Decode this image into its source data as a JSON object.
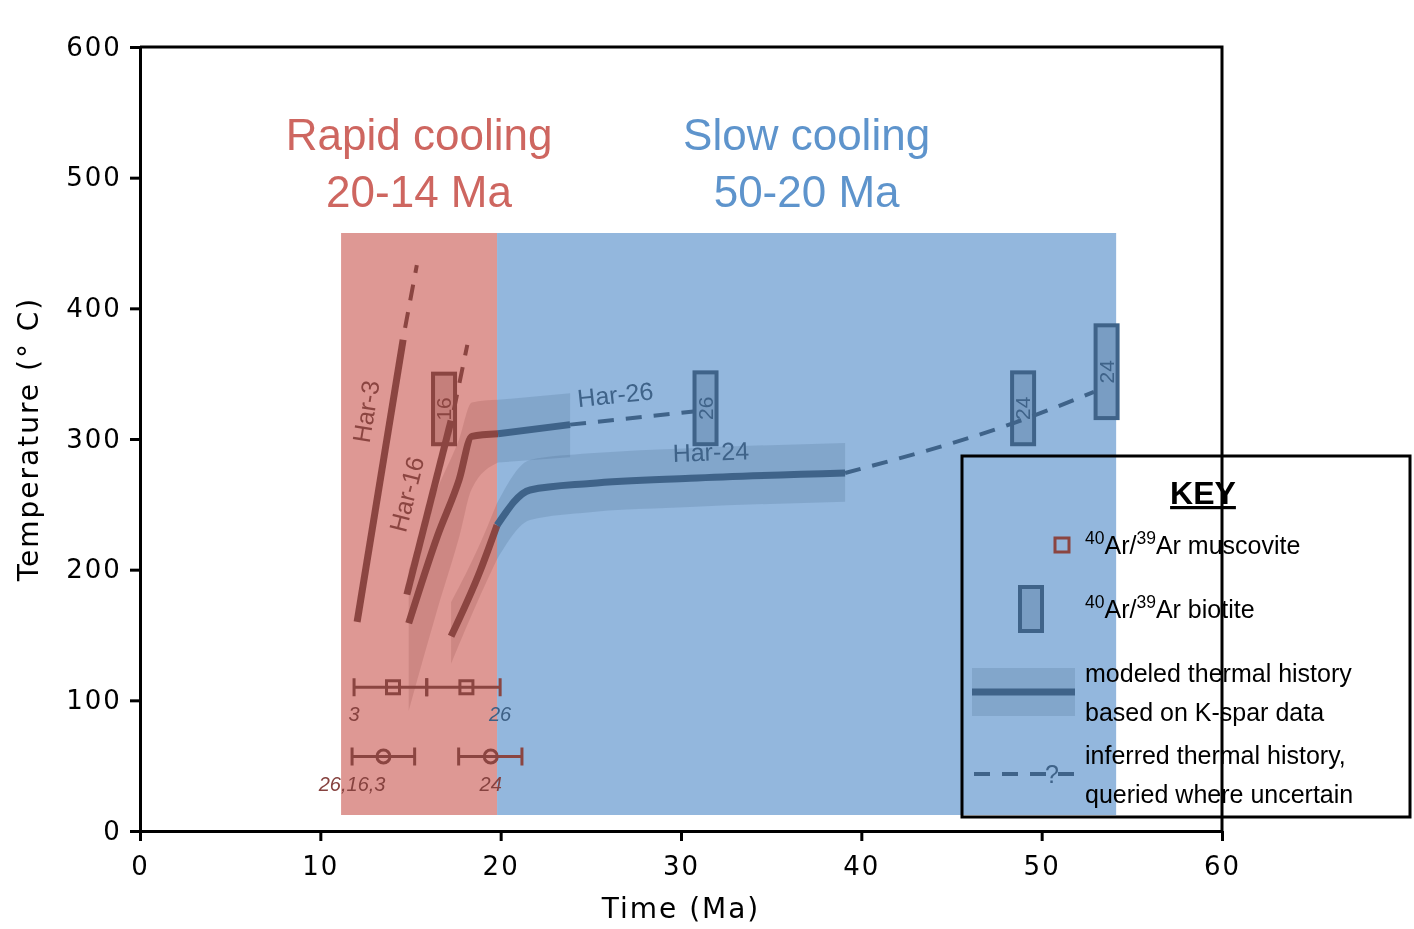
{
  "chart_data": {
    "type": "line",
    "xlabel": "Time (Ma)",
    "ylabel": "Temperature (° C)",
    "xlim": [
      0,
      60
    ],
    "ylim": [
      0,
      600
    ],
    "xticks": [
      0,
      10,
      20,
      30,
      40,
      50,
      60
    ],
    "yticks": [
      0,
      100,
      200,
      300,
      400,
      500,
      600
    ],
    "legend": "bottom right",
    "legend_title": "KEY",
    "bands": [
      {
        "axis": "x",
        "from": 11.15,
        "to": 19.8,
        "label": "Rapid cooling\n20-14 Ma",
        "color": "#ce6660"
      },
      {
        "axis": "x",
        "from": 19.8,
        "to": 54.13,
        "label": "Slow cooling\n50-20 Ma",
        "color": "#5e94cc"
      }
    ],
    "series": [
      {
        "type": "scatter",
        "name": "$^{40}$Ar/$^{39}$Ar muscovite",
        "color": "#8b4541",
        "marker": "square",
        "x": [
          14.03,
          18.1
        ],
        "values": [
          110,
          110
        ],
        "xerrors": [
          [
            11.87,
            15.9
          ],
          [
            15.9,
            19.97
          ]
        ]
      },
      {
        "type": "scatter",
        "color": "#8b4541",
        "marker": "circle",
        "x": [
          13.5,
          19.45
        ],
        "values": [
          57,
          57
        ],
        "xerrors": [
          [
            11.76,
            15.23
          ],
          [
            17.67,
            21.18
          ]
        ]
      },
      {
        "type": "bar",
        "name": "$^{40}$Ar/$^{39}$Ar biotite",
        "color": "#3f6389",
        "colors": [
          "#8b4541",
          "#3f6389",
          "#3f6389",
          "#3f6389"
        ],
        "x": [
          16.86,
          31.36,
          48.97,
          53.6
        ],
        "base": [
          296,
          296,
          296,
          316
        ],
        "values": [
          54,
          55,
          55,
          71
        ]
      },
      {
        "color": "#8b4541",
        "x": [
          12.04,
          14.59
        ],
        "values": [
          160,
          376
        ]
      },
      {
        "color": "#8b4541",
        "line_style": "dashed",
        "x": [
          14.7,
          15.35
        ],
        "values": [
          385,
          433
        ]
      },
      {
        "color": "#8b4541",
        "x": [
          14.8,
          17.25
        ],
        "values": [
          181,
          314
        ]
      },
      {
        "color": "#8b4541",
        "line_style": "dashed",
        "x": [
          17.4,
          18.15
        ],
        "values": [
          322,
          372
        ]
      },
      {
        "color": "#8b4541",
        "x": [
          14.9,
          16.5,
          17.7,
          18.4,
          19.85
        ],
        "values": [
          159,
          226,
          269,
          302,
          304
        ],
        "lower": [
          92,
          170,
          225,
          262,
          282
        ],
        "upper": [
          200,
          262,
          300,
          328,
          330
        ]
      },
      {
        "name": "modeled thermal history based on K-spar data",
        "color": "#3f6389",
        "x": [
          19.85,
          23.85
        ],
        "values": [
          304,
          311
        ],
        "lower": [
          282,
          286
        ],
        "upper": [
          330,
          335
        ]
      },
      {
        "name": "inferred thermal history, queried where uncertain",
        "color": "#3f6389",
        "line_style": "dashed",
        "x": [
          23.85,
          30.7
        ],
        "values": [
          311,
          321
        ]
      },
      {
        "color": "#8b4541",
        "x": [
          17.25,
          18.86,
          19.8
        ],
        "values": [
          149,
          199,
          234
        ],
        "lower": [
          128,
          180,
          208
        ],
        "upper": [
          175,
          220,
          251
        ]
      },
      {
        "color": "#3f6389",
        "x": [
          19.8,
          21.63,
          24.96,
          30.5,
          39.1
        ],
        "values": [
          234,
          261,
          266,
          270,
          274
        ],
        "lower": [
          208,
          238,
          244,
          248,
          252
        ],
        "upper": [
          251,
          284,
          289,
          293,
          297
        ]
      },
      {
        "color": "#3f6389",
        "line_style": "dashed",
        "x": [
          39.1,
          48.6,
          52.9
        ],
        "values": [
          274,
          313,
          336
        ]
      }
    ],
    "annotations": [
      {
        "text": "Har-3",
        "x": 13.9,
        "y": 318
      },
      {
        "text": "Har-16",
        "x": 16.13,
        "y": 253
      },
      {
        "text": "Har-26",
        "x": 26.5,
        "y": 315
      },
      {
        "text": "Har-24",
        "x": 31.7,
        "y": 271
      },
      {
        "text": "3",
        "x": 11.87,
        "y": 110
      },
      {
        "text": "26",
        "x": 19.97,
        "y": 110
      },
      {
        "text": "26,16,3",
        "x": 11.76,
        "y": 57
      },
      {
        "text": "24",
        "x": 19.45,
        "y": 57
      },
      "16",
      "26",
      "24",
      "24",
      "?"
    ]
  }
}
